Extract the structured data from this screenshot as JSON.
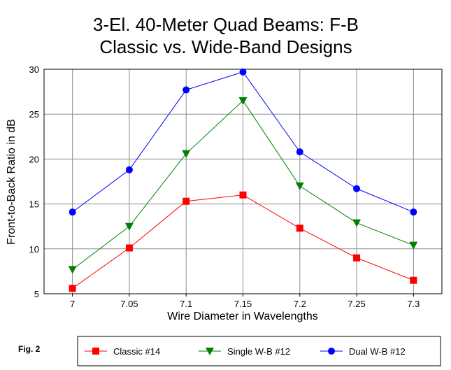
{
  "chart_data": {
    "type": "line",
    "title": [
      "3-El. 40-Meter Quad Beams:  F-B",
      "Classic vs. Wide-Band Designs"
    ],
    "xlabel": "Wire Diameter in Wavelengths",
    "ylabel": "Front-to-Back Ratio in dB",
    "categories": [
      "7",
      "7.05",
      "7.1",
      "7.15",
      "7.2",
      "7.25",
      "7.3"
    ],
    "ylim": [
      5,
      30
    ],
    "yticks": [
      "5",
      "10",
      "15",
      "20",
      "25",
      "30"
    ],
    "grid": true,
    "legend_position": "bottom",
    "series": [
      {
        "name": "Classic #14",
        "color": "#ff0000",
        "marker": "square",
        "values": [
          5.6,
          10.1,
          15.3,
          16.0,
          12.3,
          9.0,
          6.5
        ]
      },
      {
        "name": "Single W-B #12",
        "color": "#008000",
        "marker": "triangle-down",
        "values": [
          7.7,
          12.5,
          20.6,
          26.5,
          17.0,
          12.9,
          10.4
        ]
      },
      {
        "name": "Dual W-B #12",
        "color": "#0000ff",
        "marker": "circle",
        "values": [
          14.1,
          18.8,
          27.7,
          29.7,
          20.8,
          16.7,
          14.1
        ]
      }
    ]
  },
  "figure_label": "Fig. 2"
}
